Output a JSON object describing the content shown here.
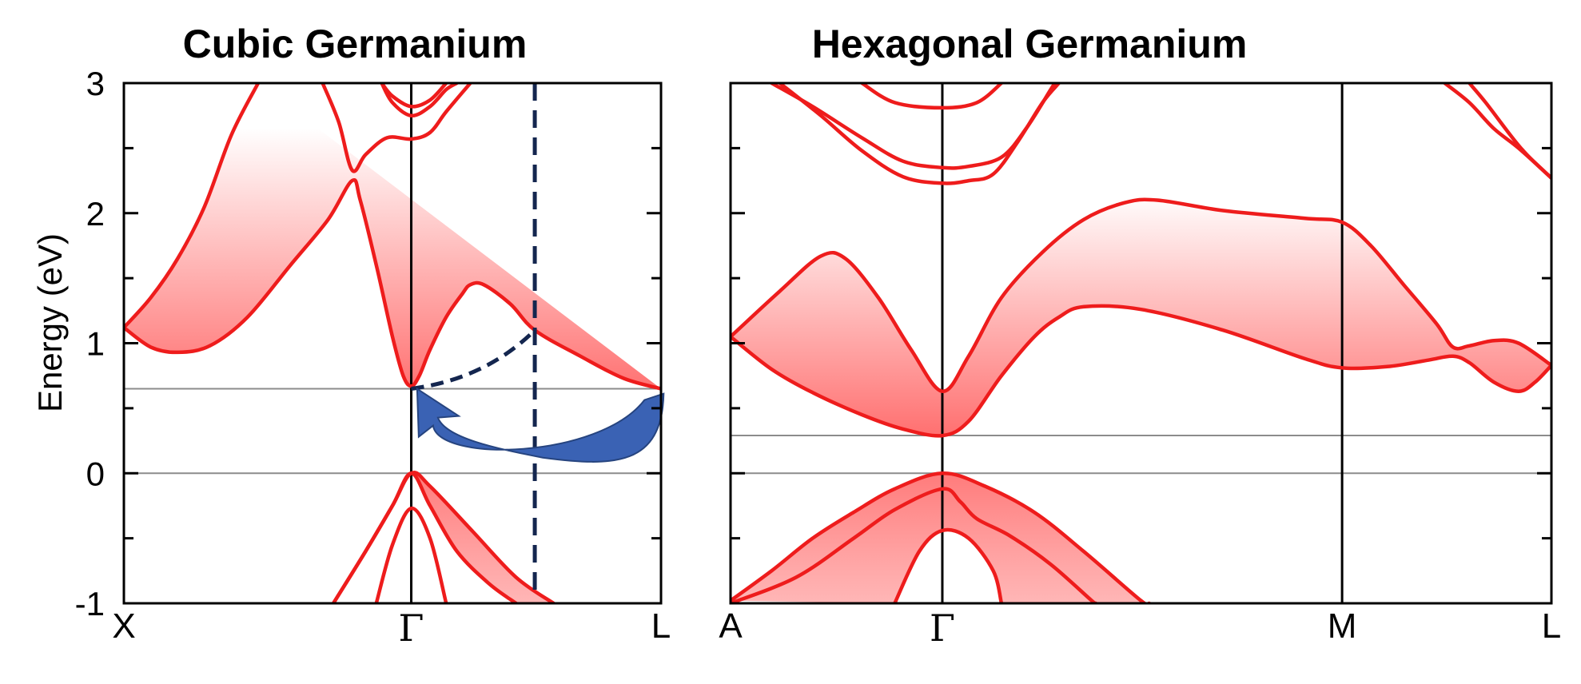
{
  "colors": {
    "band": "#ee1c1c",
    "shade": "#ff6b6b",
    "arrow": "#3a62b4",
    "arrow_edge": "#26447f",
    "dashed": "#14264f",
    "reference_line": "#8c8c8c"
  },
  "chart_data": [
    {
      "type": "line",
      "title": "Cubic Germanium",
      "ylabel": "Energy (eV)",
      "ylim": [
        -1,
        3
      ],
      "yticks": [
        -1,
        0,
        1,
        2,
        3
      ],
      "kpath": [
        "X",
        "Γ",
        "L"
      ],
      "kpath_positions": [
        0,
        0.535,
        1
      ],
      "horizontal_lines": [
        {
          "y": 0,
          "meaning": "valence band maximum"
        },
        {
          "y": 0.65,
          "meaning": "conduction band minimum"
        }
      ],
      "shaded_regions": [
        "conduction band (gradient)",
        "valence band"
      ],
      "annotations": [
        {
          "type": "vertical dashed line",
          "k": 0.765
        },
        {
          "type": "dashed curve",
          "from": {
            "k": 0.535,
            "E": 0.65
          },
          "to": {
            "k": 0.765,
            "E": 1.1
          }
        },
        {
          "type": "curved arrow",
          "from": {
            "k": 0.99,
            "E": 0.6
          },
          "to": {
            "k": 0.54,
            "E": 0.6
          },
          "meaning": "indirect gap, L valley to Γ"
        }
      ],
      "series": [
        {
          "points": [
            [
              0,
              1.12
            ],
            [
              0.05,
              0.97
            ],
            [
              0.1,
              0.93
            ],
            [
              0.16,
              0.98
            ],
            [
              0.23,
              1.2
            ],
            [
              0.31,
              1.6
            ],
            [
              0.38,
              1.95
            ],
            [
              0.425,
              2.25
            ],
            [
              0.44,
              2.1
            ],
            [
              0.47,
              1.6
            ],
            [
              0.5,
              1.05
            ],
            [
              0.52,
              0.75
            ],
            [
              0.535,
              0.67
            ],
            [
              0.55,
              0.75
            ],
            [
              0.57,
              0.95
            ],
            [
              0.6,
              1.2
            ],
            [
              0.63,
              1.38
            ],
            [
              0.645,
              1.45
            ],
            [
              0.67,
              1.45
            ],
            [
              0.72,
              1.3
            ],
            [
              0.765,
              1.1
            ],
            [
              0.85,
              0.9
            ],
            [
              0.93,
              0.73
            ],
            [
              1,
              0.65
            ]
          ]
        },
        {
          "points": [
            [
              0,
              1.12
            ],
            [
              0.05,
              1.35
            ],
            [
              0.1,
              1.65
            ],
            [
              0.15,
              2.05
            ],
            [
              0.2,
              2.6
            ],
            [
              0.25,
              3.0
            ]
          ]
        },
        {
          "points": [
            [
              0.37,
              3.0
            ],
            [
              0.4,
              2.7
            ],
            [
              0.425,
              2.33
            ],
            [
              0.45,
              2.45
            ],
            [
              0.49,
              2.58
            ],
            [
              0.535,
              2.57
            ],
            [
              0.57,
              2.62
            ],
            [
              0.6,
              2.78
            ],
            [
              0.645,
              3.0
            ]
          ]
        },
        {
          "points": [
            [
              0.48,
              3.0
            ],
            [
              0.5,
              2.85
            ],
            [
              0.535,
              2.75
            ],
            [
              0.57,
              2.82
            ],
            [
              0.6,
              2.95
            ],
            [
              0.62,
              3.0
            ]
          ]
        },
        {
          "points": [
            [
              0.48,
              3.0
            ],
            [
              0.5,
              2.9
            ],
            [
              0.535,
              2.82
            ],
            [
              0.57,
              2.87
            ],
            [
              0.6,
              3.0
            ]
          ]
        },
        {
          "points": [
            [
              0.39,
              -1.0
            ],
            [
              0.45,
              -0.6
            ],
            [
              0.5,
              -0.25
            ],
            [
              0.535,
              0.0
            ],
            [
              0.57,
              -0.25
            ],
            [
              0.62,
              -0.6
            ],
            [
              0.68,
              -0.85
            ],
            [
              0.73,
              -1.0
            ]
          ]
        },
        {
          "points": [
            [
              0.39,
              -1.0
            ],
            [
              0.45,
              -0.6
            ],
            [
              0.5,
              -0.25
            ],
            [
              0.535,
              0.0
            ],
            [
              0.57,
              -0.1
            ],
            [
              0.65,
              -0.45
            ],
            [
              0.73,
              -0.8
            ],
            [
              0.8,
              -1.0
            ]
          ]
        },
        {
          "points": [
            [
              0.47,
              -1.0
            ],
            [
              0.5,
              -0.55
            ],
            [
              0.535,
              -0.27
            ],
            [
              0.57,
              -0.5
            ],
            [
              0.6,
              -1.0
            ]
          ]
        }
      ]
    },
    {
      "type": "line",
      "title": "Hexagonal Germanium",
      "ylim": [
        -1,
        3
      ],
      "kpath": [
        "A",
        "Γ",
        "M",
        "L"
      ],
      "kpath_positions": [
        0,
        0.258,
        0.745,
        1
      ],
      "horizontal_lines": [
        {
          "y": 0,
          "meaning": "valence band maximum"
        },
        {
          "y": 0.29,
          "meaning": "conduction band minimum"
        }
      ],
      "shaded_regions": [
        "conduction band (gradient)",
        "valence band"
      ],
      "series": [
        {
          "points": [
            [
              0,
              1.05
            ],
            [
              0.05,
              0.8
            ],
            [
              0.1,
              0.62
            ],
            [
              0.16,
              0.45
            ],
            [
              0.21,
              0.34
            ],
            [
              0.258,
              0.29
            ],
            [
              0.29,
              0.4
            ],
            [
              0.33,
              0.75
            ],
            [
              0.37,
              1.05
            ],
            [
              0.4,
              1.2
            ],
            [
              0.43,
              1.28
            ],
            [
              0.5,
              1.26
            ],
            [
              0.6,
              1.1
            ],
            [
              0.7,
              0.88
            ],
            [
              0.745,
              0.81
            ],
            [
              0.8,
              0.82
            ],
            [
              0.85,
              0.87
            ],
            [
              0.88,
              0.9
            ],
            [
              0.9,
              0.85
            ],
            [
              0.93,
              0.7
            ],
            [
              0.96,
              0.63
            ],
            [
              0.98,
              0.7
            ],
            [
              1,
              0.83
            ]
          ]
        },
        {
          "points": [
            [
              0,
              1.05
            ],
            [
              0.06,
              1.4
            ],
            [
              0.11,
              1.67
            ],
            [
              0.14,
              1.65
            ],
            [
              0.18,
              1.35
            ],
            [
              0.22,
              0.95
            ],
            [
              0.258,
              0.63
            ],
            [
              0.29,
              0.9
            ],
            [
              0.33,
              1.35
            ],
            [
              0.38,
              1.7
            ],
            [
              0.43,
              1.95
            ],
            [
              0.48,
              2.08
            ],
            [
              0.52,
              2.1
            ],
            [
              0.6,
              2.02
            ],
            [
              0.7,
              1.96
            ],
            [
              0.745,
              1.93
            ],
            [
              0.78,
              1.75
            ],
            [
              0.82,
              1.45
            ],
            [
              0.86,
              1.15
            ],
            [
              0.88,
              0.97
            ],
            [
              0.9,
              0.98
            ],
            [
              0.93,
              1.02
            ],
            [
              0.96,
              1.0
            ],
            [
              1,
              0.83
            ]
          ]
        },
        {
          "points": [
            [
              0.05,
              3.0
            ],
            [
              0.1,
              2.82
            ],
            [
              0.16,
              2.58
            ],
            [
              0.21,
              2.4
            ],
            [
              0.258,
              2.35
            ],
            [
              0.29,
              2.36
            ],
            [
              0.33,
              2.43
            ],
            [
              0.36,
              2.65
            ],
            [
              0.39,
              2.95
            ],
            [
              0.395,
              3.0
            ]
          ]
        },
        {
          "points": [
            [
              0.06,
              3.0
            ],
            [
              0.11,
              2.75
            ],
            [
              0.16,
              2.48
            ],
            [
              0.21,
              2.28
            ],
            [
              0.258,
              2.23
            ],
            [
              0.29,
              2.25
            ],
            [
              0.32,
              2.3
            ],
            [
              0.35,
              2.55
            ],
            [
              0.38,
              2.85
            ],
            [
              0.4,
              3.0
            ]
          ]
        },
        {
          "points": [
            [
              0.16,
              3.0
            ],
            [
              0.2,
              2.85
            ],
            [
              0.258,
              2.81
            ],
            [
              0.3,
              2.85
            ],
            [
              0.33,
              3.0
            ]
          ]
        },
        {
          "points": [
            [
              0.87,
              3.0
            ],
            [
              0.9,
              2.85
            ],
            [
              0.93,
              2.65
            ],
            [
              0.96,
              2.5
            ],
            [
              1,
              2.27
            ]
          ]
        },
        {
          "points": [
            [
              0.9,
              3.0
            ],
            [
              0.92,
              2.85
            ],
            [
              0.95,
              2.6
            ],
            [
              0.97,
              2.45
            ],
            [
              1,
              2.27
            ]
          ]
        },
        {
          "points": [
            [
              0,
              -0.98
            ],
            [
              0.05,
              -0.75
            ],
            [
              0.1,
              -0.5
            ],
            [
              0.15,
              -0.3
            ],
            [
              0.2,
              -0.12
            ],
            [
              0.258,
              0.0
            ],
            [
              0.31,
              -0.1
            ],
            [
              0.37,
              -0.3
            ],
            [
              0.43,
              -0.6
            ],
            [
              0.5,
              -0.98
            ],
            [
              0.51,
              -1.0
            ]
          ]
        },
        {
          "points": [
            [
              0,
              -1.0
            ],
            [
              0.08,
              -0.8
            ],
            [
              0.15,
              -0.5
            ],
            [
              0.2,
              -0.28
            ],
            [
              0.258,
              -0.12
            ],
            [
              0.28,
              -0.22
            ],
            [
              0.3,
              -0.35
            ],
            [
              0.34,
              -0.48
            ],
            [
              0.39,
              -0.7
            ],
            [
              0.44,
              -0.98
            ],
            [
              0.445,
              -1.0
            ]
          ]
        },
        {
          "points": [
            [
              0.2,
              -1.0
            ],
            [
              0.23,
              -0.6
            ],
            [
              0.258,
              -0.44
            ],
            [
              0.29,
              -0.5
            ],
            [
              0.32,
              -0.75
            ],
            [
              0.33,
              -1.0
            ]
          ]
        }
      ]
    }
  ]
}
